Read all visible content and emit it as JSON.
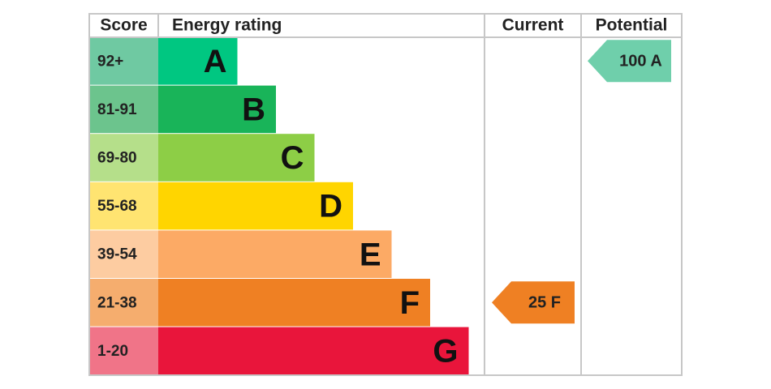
{
  "chart_data": {
    "type": "bar",
    "headers": {
      "score": "Score",
      "rating": "Energy rating",
      "current": "Current",
      "potential": "Potential"
    },
    "bands": [
      {
        "score": "92+",
        "letter": "A",
        "bar_color": "#00c781",
        "score_color": "#6fc9a2",
        "level": 1
      },
      {
        "score": "81-91",
        "letter": "B",
        "bar_color": "#19b459",
        "score_color": "#6cc48d",
        "level": 2
      },
      {
        "score": "69-80",
        "letter": "C",
        "bar_color": "#8dce46",
        "score_color": "#b5df8a",
        "level": 3
      },
      {
        "score": "55-68",
        "letter": "D",
        "bar_color": "#ffd500",
        "score_color": "#ffe471",
        "level": 4
      },
      {
        "score": "39-54",
        "letter": "E",
        "bar_color": "#fcaa65",
        "score_color": "#fdcca1",
        "level": 5
      },
      {
        "score": "21-38",
        "letter": "F",
        "bar_color": "#ef8023",
        "score_color": "#f5ad6e",
        "level": 6
      },
      {
        "score": "1-20",
        "letter": "G",
        "bar_color": "#e9153b",
        "score_color": "#f07488",
        "level": 7
      }
    ],
    "current": {
      "label": "25 F",
      "value": 25,
      "band": "F",
      "color": "#ef8023"
    },
    "potential": {
      "label": "100 A",
      "value": 100,
      "band": "A",
      "color": "#6fcfab"
    }
  }
}
